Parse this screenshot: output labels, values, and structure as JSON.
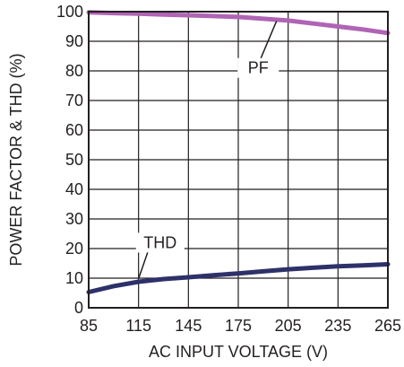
{
  "chart_data": {
    "type": "line",
    "title": "",
    "xlabel": "AC INPUT VOLTAGE (V)",
    "ylabel": "POWER FACTOR & THD (%)",
    "xlim": [
      85,
      265
    ],
    "ylim": [
      0,
      100
    ],
    "xticks": [
      "85",
      "115",
      "145",
      "175",
      "205",
      "235",
      "265"
    ],
    "yticks": [
      "0",
      "10",
      "20",
      "30",
      "40",
      "50",
      "60",
      "70",
      "80",
      "90",
      "100"
    ],
    "grid": true,
    "series": [
      {
        "name": "PF",
        "color": "#b064b5",
        "x": [
          85,
          100,
          115,
          130,
          145,
          160,
          175,
          190,
          205,
          220,
          235,
          250,
          265
        ],
        "y": [
          99.8,
          99.5,
          99.3,
          99.0,
          98.8,
          98.5,
          98.2,
          97.6,
          97.0,
          96.0,
          95.0,
          94.0,
          92.8
        ]
      },
      {
        "name": "THD",
        "color": "#2e3169",
        "x": [
          85,
          100,
          115,
          130,
          145,
          160,
          175,
          190,
          205,
          220,
          235,
          250,
          265
        ],
        "y": [
          5.3,
          7.3,
          8.8,
          9.7,
          10.3,
          11.0,
          11.6,
          12.3,
          13.0,
          13.5,
          14.0,
          14.3,
          14.7
        ]
      }
    ]
  }
}
